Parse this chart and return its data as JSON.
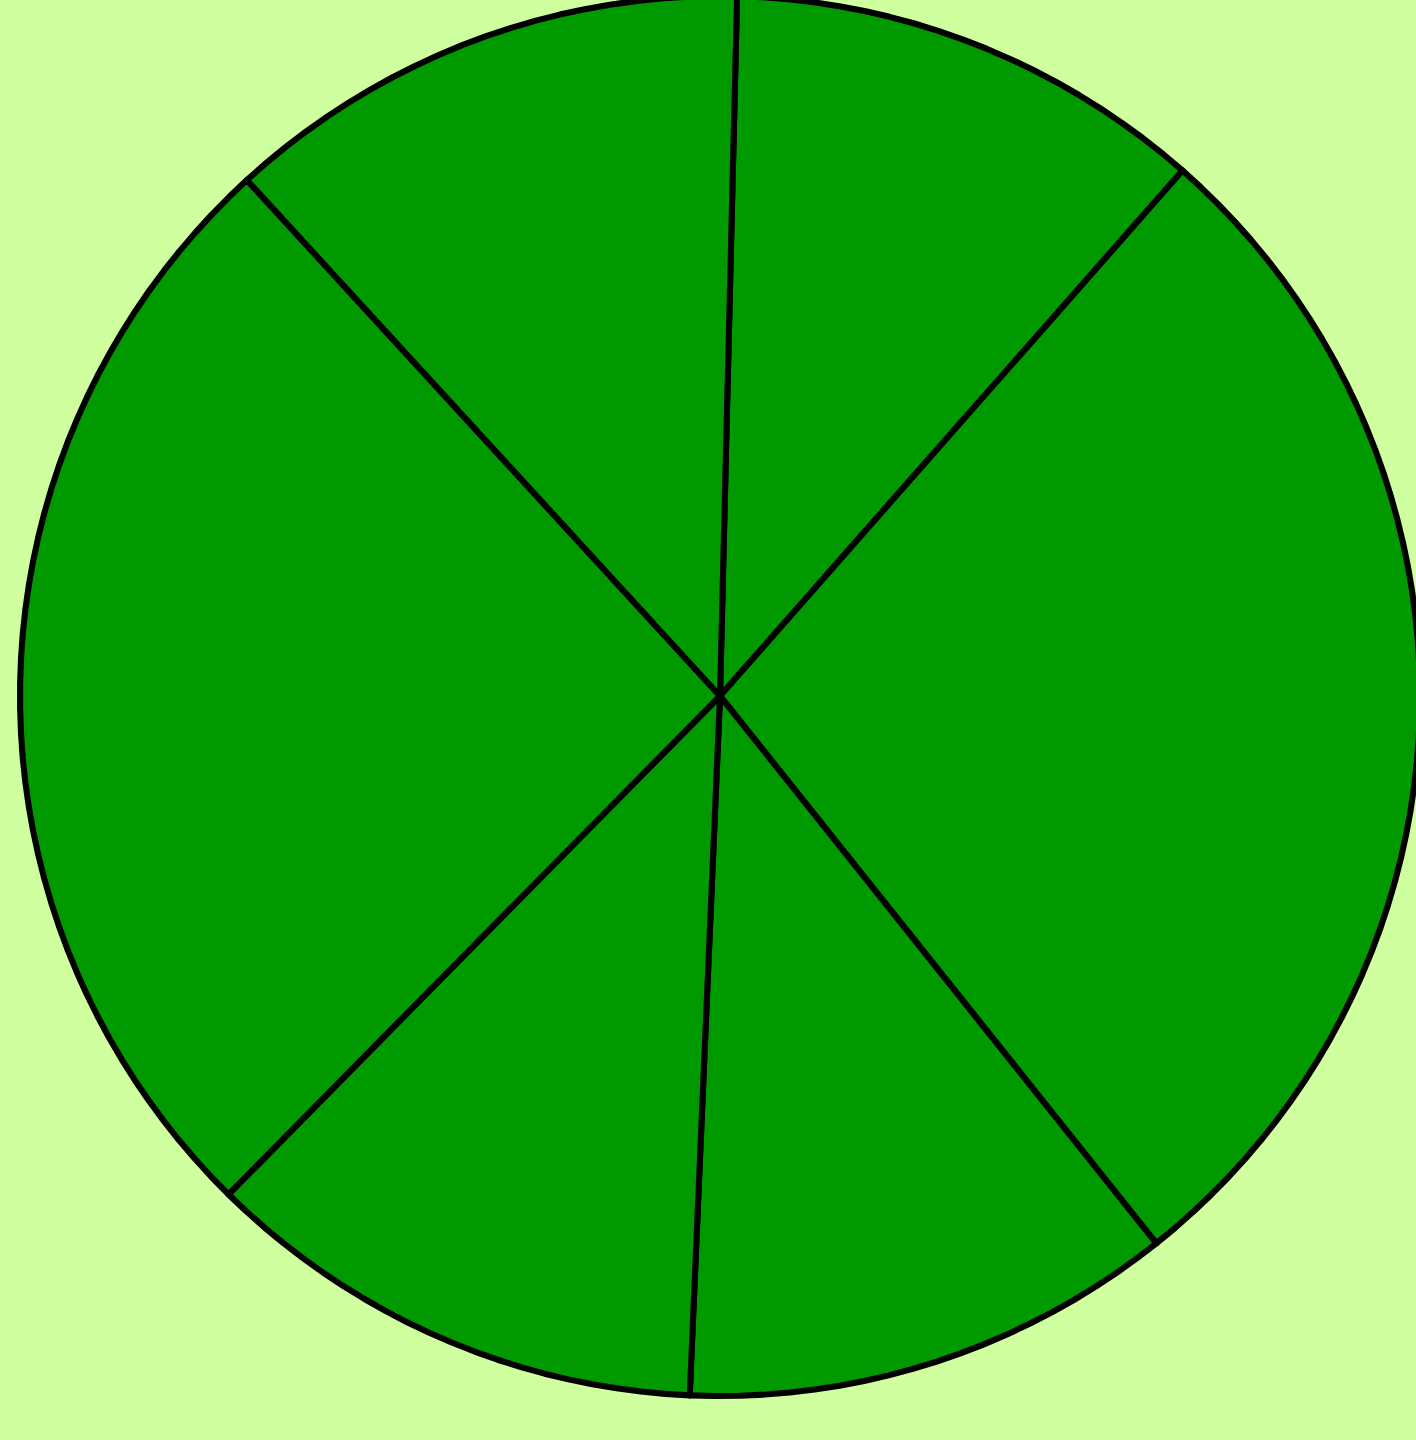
{
  "chart_data": {
    "type": "pie",
    "categories": [
      null,
      null,
      null,
      null,
      null,
      null
    ],
    "values": [
      11.1,
      27.8,
      11.4,
      11.7,
      25.8,
      12.2
    ],
    "colors": [
      "#009900",
      "#009900",
      "#009900",
      "#009900",
      "#009900",
      "#009900"
    ]
  }
}
